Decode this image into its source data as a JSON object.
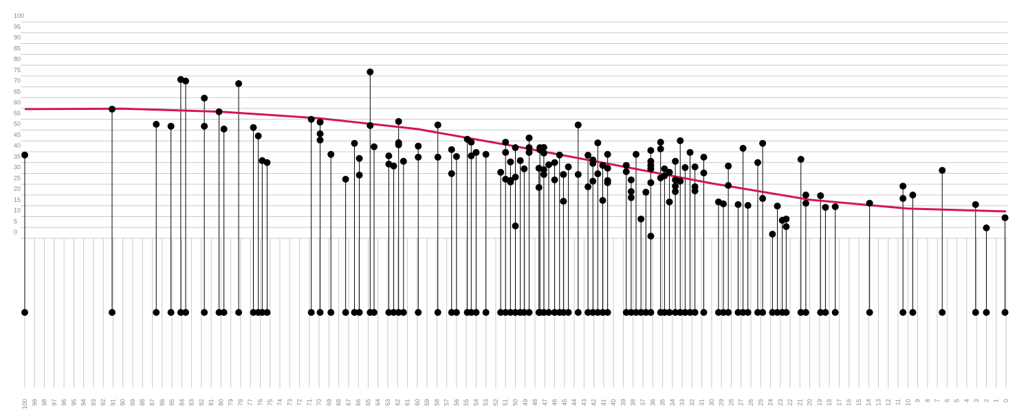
{
  "chart_data": {
    "type": "scatter",
    "x": [
      100,
      91.1,
      86.6,
      85.1,
      84.1,
      83.6,
      81.7,
      81.7,
      80.2,
      79.7,
      78.2,
      76.7,
      76.2,
      75.8,
      75.3,
      70.8,
      69.9,
      69.9,
      69.9,
      68.8,
      67.3,
      66.4,
      65.9,
      65.9,
      64.8,
      64.8,
      64.4,
      62.9,
      62.9,
      62.4,
      61.9,
      61.9,
      61.9,
      61.4,
      59.9,
      59.9,
      57.9,
      57.9,
      56.5,
      56.5,
      56.0,
      54.9,
      54.5,
      54.5,
      54.0,
      53.0,
      51.5,
      51.0,
      51.0,
      51.0,
      50.5,
      50.5,
      50.5,
      50.0,
      50.0,
      50.0,
      49.5,
      49.1,
      48.6,
      48.6,
      48.6,
      47.6,
      47.6,
      47.5,
      47.5,
      47.1,
      47.1,
      47.1,
      47.1,
      46.6,
      46.0,
      46.0,
      45.5,
      45.1,
      45.1,
      44.6,
      43.6,
      43.6,
      42.6,
      42.6,
      42.1,
      42.1,
      42.1,
      41.6,
      41.6,
      41.1,
      41.1,
      40.6,
      40.6,
      40.6,
      40.6,
      38.7,
      38.7,
      38.2,
      38.2,
      38.2,
      37.7,
      37.2,
      36.7,
      36.2,
      36.2,
      36.2,
      36.2,
      36.2,
      36.2,
      35.2,
      35.2,
      35.2,
      34.8,
      34.8,
      34.3,
      34.3,
      33.7,
      33.7,
      33.7,
      33.7,
      33.2,
      33.2,
      32.7,
      32.2,
      31.7,
      31.7,
      31.7,
      30.8,
      30.8,
      29.3,
      28.8,
      28.3,
      28.3,
      27.3,
      26.8,
      26.3,
      25.3,
      24.8,
      24.8,
      23.8,
      23.3,
      22.8,
      22.4,
      22.4,
      20.9,
      20.4,
      20.4,
      18.9,
      18.4,
      17.4,
      13.9,
      10.5,
      10.5,
      9.5,
      6.5,
      3.1,
      2.0,
      0.1
    ],
    "y": [
      38.5,
      59.7,
      52.7,
      51.8,
      73.4,
      72.7,
      64.8,
      51.8,
      58.5,
      50.5,
      71.5,
      51.2,
      47.3,
      35.9,
      35.0,
      55.0,
      53.7,
      48.3,
      45.4,
      38.8,
      27.3,
      43.9,
      36.9,
      29.2,
      76.9,
      52.1,
      42.3,
      38.1,
      34.3,
      33.4,
      54.0,
      44.2,
      43.2,
      35.6,
      42.6,
      37.5,
      52.4,
      37.5,
      41.0,
      29.9,
      37.8,
      45.8,
      44.4,
      38.1,
      39.7,
      38.8,
      30.5,
      44.4,
      39.7,
      27.3,
      26.7,
      26.0,
      35.3,
      41.9,
      28.3,
      5.7,
      35.9,
      32.1,
      41.9,
      39.7,
      46.4,
      32.4,
      23.5,
      41.9,
      40.9,
      42.0,
      39.4,
      31.7,
      29.5,
      34.0,
      35.0,
      27.0,
      38.5,
      29.5,
      17.1,
      33.0,
      52.4,
      29.5,
      38.4,
      23.8,
      36.2,
      26.4,
      34.6,
      44.1,
      29.8,
      33.7,
      17.5,
      38.8,
      32.4,
      26.7,
      25.7,
      33.7,
      30.8,
      27.0,
      18.8,
      21.6,
      38.8,
      8.9,
      21.3,
      40.6,
      35.6,
      33.7,
      32.1,
      25.7,
      1.0,
      41.3,
      44.4,
      27.9,
      28.9,
      32.1,
      30.5,
      16.8,
      35.6,
      27.0,
      24.1,
      21.6,
      45.1,
      26.4,
      32.7,
      39.7,
      33.0,
      23.8,
      21.9,
      37.5,
      30.2,
      16.8,
      15.9,
      33.4,
      24.4,
      15.6,
      41.6,
      15.2,
      35.0,
      43.9,
      18.4,
      1.9,
      14.9,
      8.3,
      8.9,
      5.4,
      36.5,
      20.0,
      16.2,
      19.7,
      14.3,
      14.6,
      16.2,
      24.1,
      18.4,
      20.0,
      31.4,
      15.6,
      4.8,
      9.5
    ],
    "color": "#000000",
    "trend": {
      "x": [
        100,
        90,
        80,
        70,
        60,
        50,
        40,
        30,
        20,
        10,
        0
      ],
      "y": [
        59.7,
        59.9,
        58.5,
        55.5,
        50.5,
        42.5,
        34,
        25.4,
        17.8,
        13.7,
        12.4
      ],
      "color": "#d5135a"
    },
    "xlim": [
      100,
      0
    ],
    "xticks": [
      100,
      99,
      98,
      97,
      96,
      95,
      94,
      93,
      92,
      91,
      90,
      89,
      88,
      87,
      86,
      85,
      84,
      83,
      82,
      81,
      80,
      79,
      78,
      77,
      76,
      75,
      74,
      73,
      72,
      71,
      70,
      69,
      68,
      67,
      66,
      65,
      64,
      63,
      62,
      61,
      60,
      59,
      58,
      57,
      56,
      55,
      54,
      53,
      52,
      51,
      50,
      49,
      48,
      47,
      46,
      45,
      44,
      43,
      42,
      41,
      40,
      39,
      38,
      37,
      36,
      35,
      34,
      33,
      32,
      31,
      30,
      29,
      28,
      27,
      26,
      25,
      24,
      23,
      22,
      21,
      20,
      19,
      18,
      17,
      16,
      15,
      14,
      13,
      12,
      11,
      10,
      9,
      8,
      7,
      6,
      5,
      4,
      3,
      2,
      1,
      0
    ],
    "ylim": [
      0,
      100
    ],
    "yticks": [
      0,
      5,
      10,
      15,
      20,
      25,
      30,
      35,
      40,
      45,
      50,
      55,
      60,
      65,
      70,
      75,
      80,
      85,
      90,
      95,
      100
    ],
    "grid": true
  }
}
